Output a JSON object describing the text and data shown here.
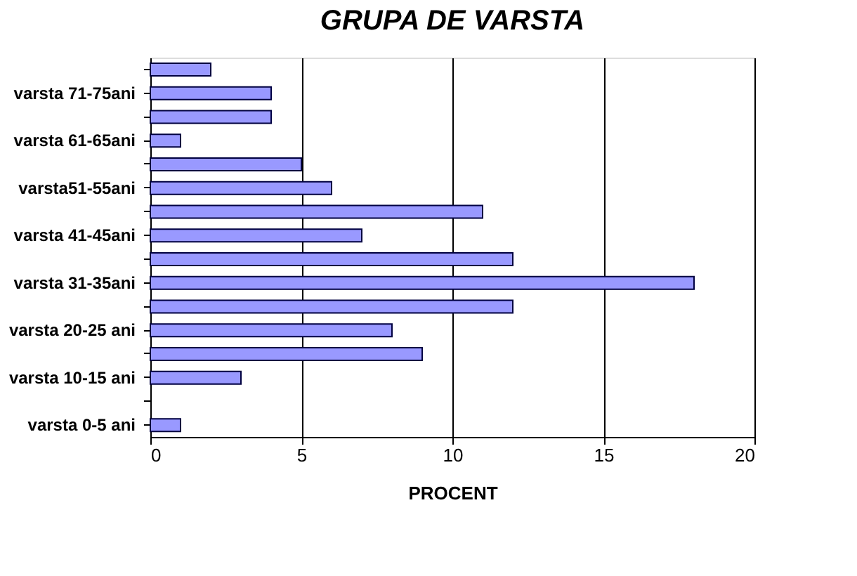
{
  "chart_data": {
    "type": "bar",
    "orientation": "horizontal",
    "title": "GRUPA DE VARSTA",
    "xlabel": "PROCENT",
    "categories": [
      null,
      "varsta 71-75ani",
      null,
      "varsta 61-65ani",
      null,
      "varsta51-55ani",
      null,
      "varsta 41-45ani",
      null,
      "varsta 31-35ani",
      null,
      "varsta 20-25 ani",
      null,
      "varsta 10-15 ani",
      null,
      "varsta 0-5 ani"
    ],
    "values": [
      2,
      4,
      4,
      1,
      5,
      6,
      11,
      7,
      12,
      18,
      12,
      8,
      9,
      3,
      0,
      1
    ],
    "color": "#9999ff",
    "xlim": [
      0,
      20
    ],
    "xticks": [
      0,
      5,
      10,
      15,
      20
    ],
    "grid": "x"
  }
}
